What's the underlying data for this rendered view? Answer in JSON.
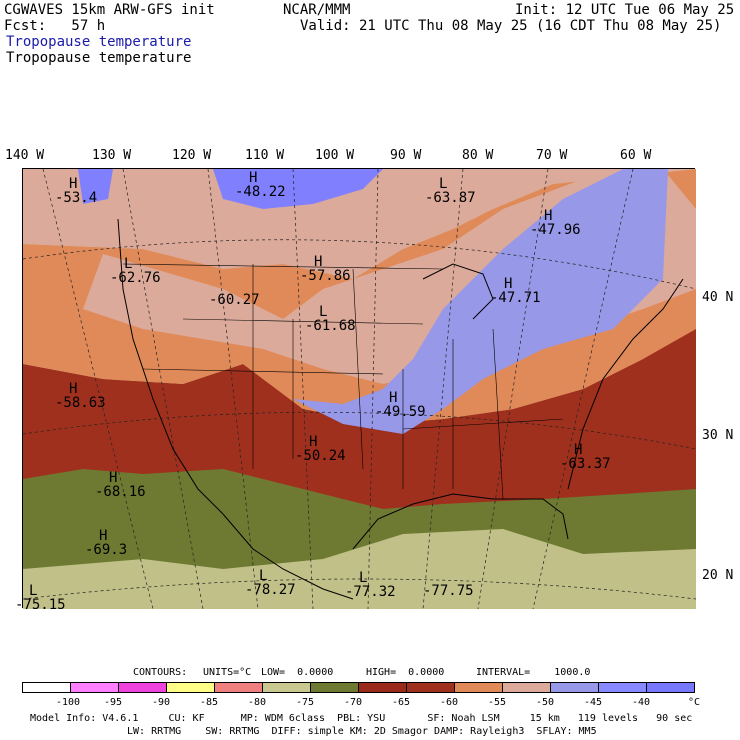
{
  "header": {
    "title_left": "CGWAVES 15km ARW-GFS init",
    "title_center": "NCAR/MMM",
    "init": "Init: 12 UTC Tue 06 May 25",
    "fcst": "Fcst:   57 h",
    "valid": "Valid: 21 UTC Thu 08 May 25 (16 CDT Thu 08 May 25)",
    "field_label_1": "Tropopause temperature",
    "field_label_2": "Tropopause temperature"
  },
  "colors": {
    "field_label_1": "#1a1aaa",
    "very_cold": "#8080ff",
    "cold": "#9898e8",
    "band1": "#dcaa9a",
    "band2": "#e08a5a",
    "band3": "#a0301e",
    "band4": "#6e7a32",
    "band5": "#c0c088"
  },
  "longitude_labels": [
    "140 W",
    "130 W",
    "120 W",
    "110 W",
    "100 W",
    "90 W",
    "80 W",
    "70 W",
    "60 W"
  ],
  "latitude_labels": [
    "40 N",
    "30 N",
    "20 N"
  ],
  "highs_lows": [
    {
      "type": "H",
      "value": "-53.4"
    },
    {
      "type": "H",
      "value": "-48.22"
    },
    {
      "type": "L",
      "value": "-63.87"
    },
    {
      "type": "H",
      "value": "-47.96"
    },
    {
      "type": "L",
      "value": "-62.76"
    },
    {
      "type": "H",
      "value": "-57.86"
    },
    {
      "type": "H",
      "value": "-47.71"
    },
    {
      "type": "",
      "value": "-60.27"
    },
    {
      "type": "L",
      "value": "-61.68"
    },
    {
      "type": "H",
      "value": "-58.63"
    },
    {
      "type": "H",
      "value": "-49.59"
    },
    {
      "type": "H",
      "value": "-50.24"
    },
    {
      "type": "H",
      "value": "-63.37"
    },
    {
      "type": "H",
      "value": "-68.16"
    },
    {
      "type": "H",
      "value": "-69.3"
    },
    {
      "type": "L",
      "value": "-78.27"
    },
    {
      "type": "L",
      "value": "-77.32"
    },
    {
      "type": "L",
      "value": "-75.15"
    },
    {
      "type": "",
      "value": "-77.75"
    }
  ],
  "contours": {
    "label": "CONTOURS:",
    "units": "UNITS=°C",
    "low": "LOW=  0.0000",
    "high": "HIGH=  0.0000",
    "interval": "INTERVAL=    1000.0"
  },
  "legend": {
    "colors": [
      "#ffffff",
      "#ff80ff",
      "#ee44dd",
      "#ffff88",
      "#f08080",
      "#c8c890",
      "#6e7a32",
      "#9a2a1a",
      "#a0301e",
      "#e08a5a",
      "#dcaa9a",
      "#9898e8",
      "#8888ff",
      "#7878ff"
    ],
    "ticks": [
      "-100",
      "-95",
      "-90",
      "-85",
      "-80",
      "-75",
      "-70",
      "-65",
      "-60",
      "-55",
      "-50",
      "-45",
      "-40"
    ],
    "unit": "°C"
  },
  "model_info": {
    "line1": "Model Info: V4.6.1     CU: KF      MP: WDM 6class  PBL: YSU       SF: Noah LSM     15 km   119 levels   90 sec",
    "line2": "LW: RRTMG    SW: RRTMG  DIFF: simple KM: 2D Smagor DAMP: Rayleigh3  SFLAY: MM5"
  }
}
